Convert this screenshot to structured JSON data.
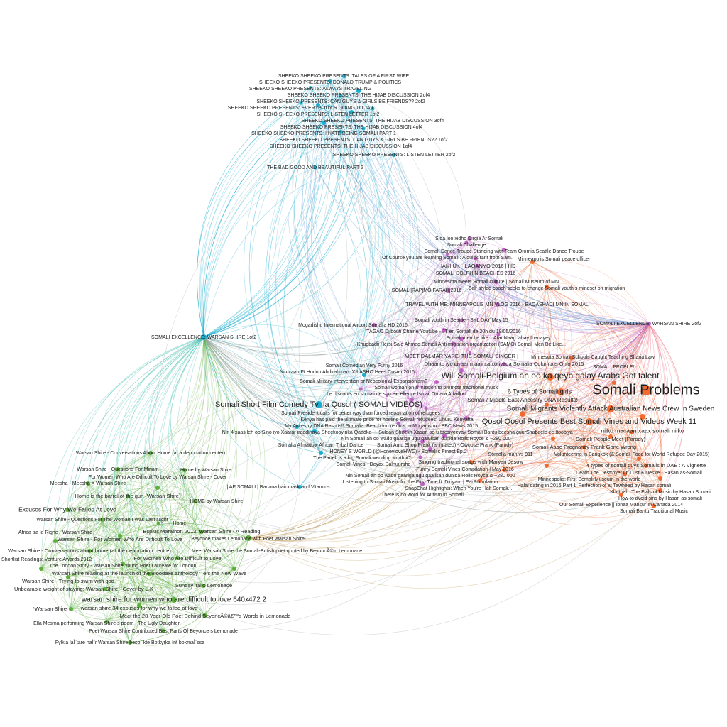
{
  "graph": {
    "edge_style": "curved",
    "groups": {
      "cyan": {
        "color": "#1aaed0",
        "nodes": [
          "SHEEKO SHEEKO PRESENTS: TALES OF A FIRST WIFE.",
          "SHEEKO SHEEKO PRESENTS: DONALD TRUMP & POLITICS",
          "SHEEKO SHEEKO PRESENTS: ALWAYS TRAVELING",
          "SHEEKO SHEEKO PRESENTS: THE HIJAB DISCUSSION 2of4",
          "SHEEKO SHEEKO PRESENTS: CAN GUYS & GIRLS BE FRIENDS?? 2of2",
          "SHEEKO SHEEKO PRESENTS: EVERYBODY S GOING TO JAIL",
          "SHEEKO SHEEKO PRESENTS: LISTEN LETTER 1of2",
          "SHEEKO SHEEKO PRESENTS: THE HIJAB DISCUSSION 3of4",
          "SHEEKO SHEEKO PRESENTS: THE HIJAB DISCUSSION 4of4",
          "SHEEKO SHEEKO PRESENTS: I HATE BEING SOMALI PART 1",
          "SHEEKO SHEEKO PRESENTS: CAN GUYS & GIRLS BE FRIENDS?? 1of2",
          "SHEEKO SHEEKO PRESENTS: THE HIJAB DISCUSSION 1of4",
          "SHEEKO SHEEKO PRESENTS: LISTEN LETTER 2of2",
          "THE BAD GOOD AND BEAUTIFUL PART 2",
          "SOMALI EXCELLENCE: WARSAN SHIRE 1of2",
          "Somali Comedian Very Furny 2016",
          "Somali Short Film Comedy Tv Ila Qosol ( SOMALI VIDEOS)",
          "Nin 4 xaas leh oo Sino iyo Xaarar iraadinaya Sheekooyinka Qaadka",
          "My Ancestry DNA Results!!",
          "Somalia Afmadow African Tribal Dance",
          "| AF SOMALI | Banana hair mask and Vitamins"
        ]
      },
      "purple": {
        "color": "#c062c4",
        "nodes": [
          "Sida loo xidho Dirgia Af Somali",
          "Somali Challenge",
          "Somali Dance Troupe Standing with Team Oromia Seattle Dance Troupe",
          "Of Course you are learning Somali!: A quick rant from Sam.",
          "SOMALI DOLPHIN BEACHES 2016",
          "HANI UK - LAQANYO 2016 | HD",
          "Minnesota meets Somali culture | Somali Museum of MN",
          "SOMALI|RAP|MO FARAH|2016",
          "TRAVEL WITH ME: MINNEAPOLIS MN VLOG 2016 - BAQASHADI MN IN SOMALI",
          "SOMALI EXCELLENCE: WARSAN SHIRE 2of2",
          "Somali youth in Seattle - SYL DAY May 15",
          "Mogadishu International Airport Somalia HD 2016",
          "TAGAO Djibouti Chaine Youtube - JT en Somali de 20h du 19/05/2016",
          "Somali men be like... Afar Naag lahay Ibanayey",
          "Khudbadii Hersi Said Ahmed Somali Anti migration organization (SAMO) Somali Men Be Like...",
          "Nimcaan Ft Hodon Abdirahman: XILASHO Hees Cusub 2016",
          "Somali Military intervention or Neocolonial Expansionism?",
          "Dhaanto iyo ciyaar maalinta xoriyada Somalia Columbus Ohio 2015",
          "MEET DALMAR YARE| THE SOMALI SINGER |",
          "Somali woman on a mission to promote traditional music",
          "Le discours en somali de son excellence Ismail Omara Adaillou",
          "Somali President calls for better way than forced repatriation of refugees",
          "Kenya has paid the ultimate price for hosting Somali refugees: Uhuru Kenyatta",
          "Somalia: Beach fun returns to Mogadishu - BBC News 2015",
          "Nin Somali ah oo wado gaariga ugu qaalisan dunida Rolls Royce & ~280 000",
          "Somali Auto Shop Prank (animated) - Owoose Prank (Parody)",
          "HONEY S WORLD (@HoneyloveHWC) - Somali s Finest Ep.2",
          "The Panel: is a big Somali wedding worth it?",
          "Somali Vines - Deyax Dalnuurshe",
          "Funny Somali Vines Compilation | May 2016",
          "Nin Somali ah oo wado gaariga ugu qaalisan dunida Rolls Royce & ~280 000",
          "Listening to Somali Music for the First Time ft. Diriyam | EarStimulation",
          "There is no word for Autism in Somali"
        ]
      },
      "orange": {
        "color": "#f4692c",
        "nodes": [
          "Minneapolis Somali peace officer",
          "Self styled coach seeks to change Somali youth s mindset on migration",
          "Minnesota Somali Schools Caught Teaching Sharia Law",
          "Will Somali-Belgium ah oo ka qeyb galay  Arabs Got talent",
          "SOMALI PEOPLE!!",
          "Somali Problems",
          "6 Types of Somali girls",
          "Suldan Sheekh Xasan oo u tacsiyeeyay Somali Bantu beesha guurShabeele ee Itoobiya",
          "Somali Migrants Violently Attack Australian News Crew In Sweden",
          "niiko macaan xaax somali niiko",
          "Somali / Middle East Ancestry DNA Results!",
          "Qosol Qosol Presents Best Somali Vines and Videos Week 11",
          "Volunteering in Bangkok (& Somali Food for World Refugee Day 2015)",
          "Somalia man vs 911",
          "Somali People Meet (Parody)",
          "Somali Aabo Pregnancy Prank Gone Wrong",
          "Death The Destroyer Of Lust & Desire - Hasan as-Somali",
          "Singing traditional songs with Maryan Jesow",
          "Minneapolis: First Somali Museum in the world",
          "Halal dating in 2016 Part 1",
          "4 types of somali guys Somalis in UAE : A Vignette",
          "Perfection of at Tawheed by Hasan somali",
          "Khutbah: The Evils of Music by Hasan Somali",
          "SnapChat Highlights: When You're Half Somali...",
          "How to avoid sins by Hasan as somali",
          "Our Somali Experience || Ibnaa Mansur In Canada 2014",
          "Somali Bantu Traditional Music"
        ]
      },
      "green": {
        "color": "#5eae3c",
        "nodes": [
          "Warsan Shire - Conversations About Home (at a deportation center)",
          "Warsan Shire - Questions For Miriam",
          "Home by Warsan Shire",
          "Meesha - Meesha X Warsan Shire",
          "For Women Who Are Difficult To Love by Warsan Shire - Cover",
          "Home is the barrel of the gun (Warsan Shire)",
          "HOME by Warsan Shire",
          "Excuses For Why We Failed At Love",
          "Warsan Shire - Questions For The Woman I Was Last Night",
          "Home",
          "Warsan Shire - For Women Who Are Difficult To Love",
          "Bcplus Marathon 2013: Warsan Shire - A Reading",
          "Beyonce makes Lemonade with Poet Warsan Shire!",
          "Africa tra le Righe - Warsan Shire",
          "Warsan Shire - Conversations about home (at the deportation centre)",
          "For Women Who Are Difficult to Love",
          "The London Story - Warsan Shire Young Poet Laureate for London",
          "Shortlist Readings: Venture Awards 2012",
          "Meet Warsan Shire the Somali-British poet quoted by BeyoncÃ©in Lemonade",
          "Warsan Shire reading at the launch of the Bloodaxe anthology 'Ten: the New Wave",
          "Warsan Shire - Trying to swim with god",
          "Unbearable weight of staying: Warsan Shire - Cover by L.K",
          "Sunday Talk: Lemonade",
          "warsan shire for women who are difficult to love 640x472 2",
          "warsan shire 34 excuses for why we failed at love",
          "*Warsan Shire",
          "Meet the 28-Year-Old Poet Behind BeyoncÃ©â€™s Words in Lemonade",
          "Ella Mesma performing Warsan Shire s poem - The Ugly Daughter",
          "Poet Warsan Shire Contributed Best Parts Of Beyonce s Lemonade",
          "Fylkla laÌˆtare naÌˆr Warsan Shire besoÌˆkte Botkyrka Int bokmaÌˆssa"
        ]
      }
    },
    "cross_edge_color": "#9aa6a0",
    "bridge_edge_color": "#c8a060",
    "blue_edge_color": "#6c96d6"
  }
}
